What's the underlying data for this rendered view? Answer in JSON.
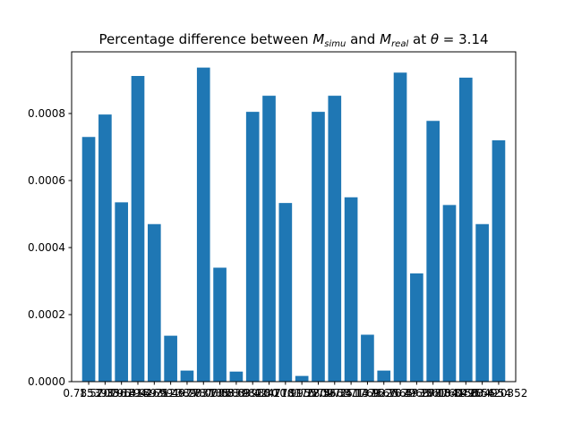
{
  "chart_data": {
    "type": "bar",
    "title_parts": {
      "pre": "Percentage difference between ",
      "m1_base": "M",
      "m1_sub": "simu",
      "mid": " and ",
      "m2_base": "M",
      "m2_sub": "real",
      "post": " at ",
      "theta": "θ",
      "eq": " = 3.14"
    },
    "categories": [
      "0.785398",
      "1.570796",
      "2.356194",
      "3.141593",
      "3.926991",
      "4.712389",
      "5.497787",
      "6.283185",
      "7.068583",
      "7.853982",
      "8.639380",
      "9.424778",
      "10.210176",
      "10.995574",
      "11.780972",
      "12.566371",
      "13.351769",
      "14.137167",
      "14.922565",
      "15.707963",
      "16.493361",
      "17.278760",
      "18.064158",
      "18.849556",
      "19.634954",
      "20.420352"
    ],
    "values": [
      0.00073,
      0.000797,
      0.000535,
      0.000912,
      0.00047,
      0.000137,
      3.3e-05,
      0.000937,
      0.00034,
      3e-05,
      0.000805,
      0.000853,
      0.000533,
      1.7e-05,
      0.000805,
      0.000853,
      0.00055,
      0.00014,
      3.3e-05,
      0.000922,
      0.000323,
      0.000778,
      0.000527,
      0.000907,
      0.00047,
      0.00072
    ],
    "yticks": [
      "0.0000",
      "0.0002",
      "0.0004",
      "0.0006",
      "0.0008"
    ],
    "ytick_values": [
      0,
      0.0002,
      0.0004,
      0.0006,
      0.0008
    ],
    "ylim": [
      0,
      0.000984
    ],
    "xlabel": "",
    "ylabel": "",
    "bar_color": "#1f77b4",
    "grid": false
  }
}
